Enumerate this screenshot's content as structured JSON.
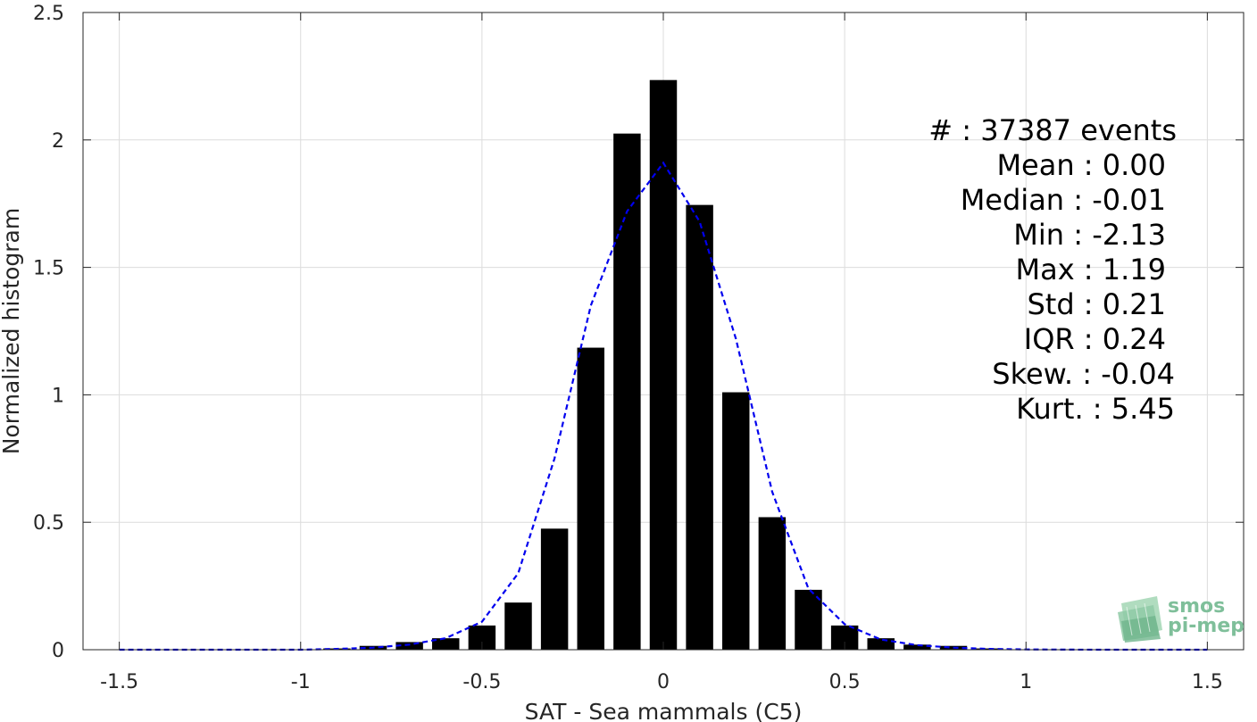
{
  "chart_data": {
    "type": "bar",
    "xlabel": "SAT - Sea mammals (C5)",
    "ylabel": "Normalized histogram",
    "xlim": [
      -1.6,
      1.6
    ],
    "ylim": [
      0,
      2.5
    ],
    "grid": true,
    "bar_width": 0.075,
    "xticks": [
      -1.5,
      -1,
      -0.5,
      0,
      0.5,
      1,
      1.5
    ],
    "xtick_labels": [
      "-1.5",
      "-1",
      "-0.5",
      "0",
      "0.5",
      "1",
      "1.5"
    ],
    "yticks": [
      0,
      0.5,
      1,
      1.5,
      2,
      2.5
    ],
    "ytick_labels": [
      "0",
      "0.5",
      "1",
      "1.5",
      "2",
      "2.5"
    ],
    "bars": {
      "x": [
        -0.9,
        -0.8,
        -0.7,
        -0.6,
        -0.5,
        -0.4,
        -0.3,
        -0.2,
        -0.1,
        0.0,
        0.1,
        0.2,
        0.3,
        0.4,
        0.5,
        0.6,
        0.7,
        0.8,
        0.9
      ],
      "y": [
        0.005,
        0.015,
        0.03,
        0.045,
        0.095,
        0.185,
        0.475,
        1.185,
        2.025,
        2.235,
        1.745,
        1.01,
        0.52,
        0.235,
        0.095,
        0.045,
        0.02,
        0.015,
        0.005
      ],
      "color": "#000000"
    },
    "fit_curve": {
      "style": "dashed",
      "color": "#0000ee",
      "x": [
        -1.5,
        -1.2,
        -1.0,
        -0.9,
        -0.8,
        -0.7,
        -0.6,
        -0.5,
        -0.4,
        -0.3,
        -0.2,
        -0.1,
        0.0,
        0.1,
        0.2,
        0.3,
        0.4,
        0.5,
        0.6,
        0.7,
        0.8,
        0.9,
        1.0,
        1.2,
        1.5
      ],
      "y": [
        0,
        0,
        0,
        0.003,
        0.008,
        0.02,
        0.045,
        0.11,
        0.3,
        0.75,
        1.35,
        1.72,
        1.91,
        1.68,
        1.22,
        0.62,
        0.24,
        0.1,
        0.04,
        0.018,
        0.008,
        0.003,
        0.001,
        0,
        0
      ]
    },
    "stats": [
      {
        "label": "#  : 37387 events"
      },
      {
        "label": "Mean : 0.00"
      },
      {
        "label": "Median : -0.01"
      },
      {
        "label": "Min : -2.13"
      },
      {
        "label": "Max : 1.19"
      },
      {
        "label": "Std : 0.21"
      },
      {
        "label": "IQR : 0.24"
      },
      {
        "label": "Skew. : -0.04"
      },
      {
        "label": "Kurt. : 5.45"
      }
    ]
  },
  "logo": {
    "line1": "smos",
    "line2": "pi-mep",
    "color": "#7fbf9a"
  }
}
